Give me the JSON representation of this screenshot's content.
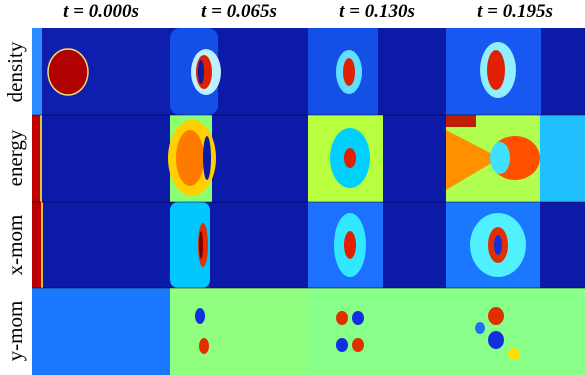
{
  "columns": [
    "t = 0.000s",
    "t = 0.065s",
    "t = 0.130s",
    "t = 0.195s"
  ],
  "rows": [
    "density",
    "energy",
    "x-mom",
    "y-mom"
  ]
}
